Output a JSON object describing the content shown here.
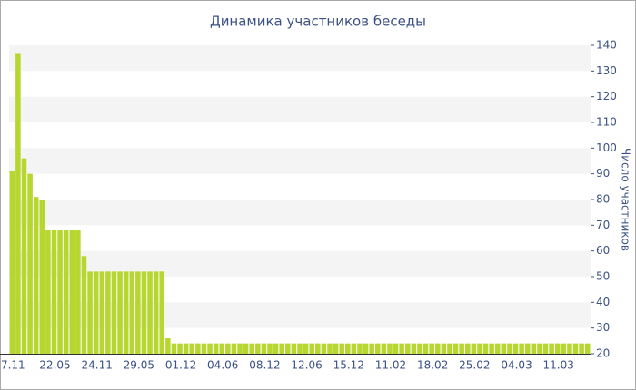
{
  "chart_data": {
    "type": "bar",
    "title": "Динамика участников беседы",
    "y_label": "Число участников",
    "categories": [
      "7.11",
      null,
      null,
      null,
      null,
      null,
      null,
      "22.05",
      null,
      null,
      null,
      null,
      null,
      null,
      "24.11",
      null,
      null,
      null,
      null,
      null,
      null,
      "29.05",
      null,
      null,
      null,
      null,
      null,
      null,
      "01.12",
      null,
      null,
      null,
      null,
      null,
      null,
      "04.06",
      null,
      null,
      null,
      null,
      null,
      null,
      "08.12",
      null,
      null,
      null,
      null,
      null,
      null,
      "12.06",
      null,
      null,
      null,
      null,
      null,
      null,
      "15.12",
      null,
      null,
      null,
      null,
      null,
      null,
      "11.02",
      null,
      null,
      null,
      null,
      null,
      null,
      "18.02",
      null,
      null,
      null,
      null,
      null,
      null,
      "25.02",
      null,
      null,
      null,
      null,
      null,
      null,
      "04.03",
      null,
      null,
      null,
      null,
      null,
      null,
      "11.03",
      null,
      null,
      null,
      null,
      null
    ],
    "values": [
      91,
      137,
      96,
      90,
      81,
      80,
      68,
      68,
      68,
      68,
      68,
      68,
      58,
      52,
      52,
      52,
      52,
      52,
      52,
      52,
      52,
      52,
      52,
      52,
      52,
      52,
      26,
      24,
      24,
      24,
      24,
      24,
      24,
      24,
      24,
      24,
      24,
      24,
      24,
      24,
      24,
      24,
      24,
      24,
      24,
      24,
      24,
      24,
      24,
      24,
      24,
      24,
      24,
      24,
      24,
      24,
      24,
      24,
      24,
      24,
      24,
      24,
      24,
      24,
      24,
      24,
      24,
      24,
      24,
      24,
      24,
      24,
      24,
      24,
      24,
      24,
      24,
      24,
      24,
      24,
      24,
      24,
      24,
      24,
      24,
      24,
      24,
      24,
      24,
      24,
      24,
      24,
      24,
      24,
      24,
      24,
      24
    ],
    "color": "#b7d630",
    "ylim": [
      20,
      140
    ],
    "yticks": [
      20,
      30,
      40,
      50,
      60,
      70,
      80,
      90,
      100,
      110,
      120,
      130,
      140
    ],
    "grid": true
  }
}
